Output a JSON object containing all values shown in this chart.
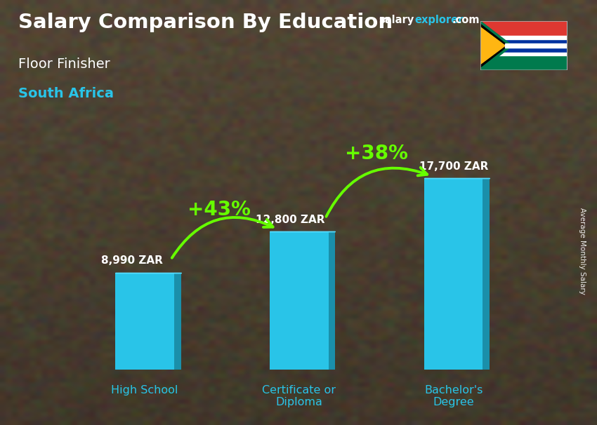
{
  "title_main": "Salary Comparison By Education",
  "title_sub": "Floor Finisher",
  "title_country": "South Africa",
  "categories": [
    "High School",
    "Certificate or\nDiploma",
    "Bachelor's\nDegree"
  ],
  "values": [
    8990,
    12800,
    17700
  ],
  "labels": [
    "8,990 ZAR",
    "12,800 ZAR",
    "17,700 ZAR"
  ],
  "bar_color_main": "#29C4E8",
  "bar_color_dark": "#1A8FAA",
  "bar_color_light": "#55DDFF",
  "pct_labels": [
    "+43%",
    "+38%"
  ],
  "pct_color": "#66FF00",
  "text_color_white": "#FFFFFF",
  "text_color_cyan": "#29C4E8",
  "site_salary_color": "#FFFFFF",
  "site_explorer_color": "#29C4E8",
  "ylabel": "Average Monthly Salary",
  "bar_width": 0.38,
  "bar_depth": 0.045,
  "ylim": [
    0,
    22000
  ],
  "bg_color": "#5a4a3a",
  "x_positions": [
    0,
    1,
    2
  ]
}
